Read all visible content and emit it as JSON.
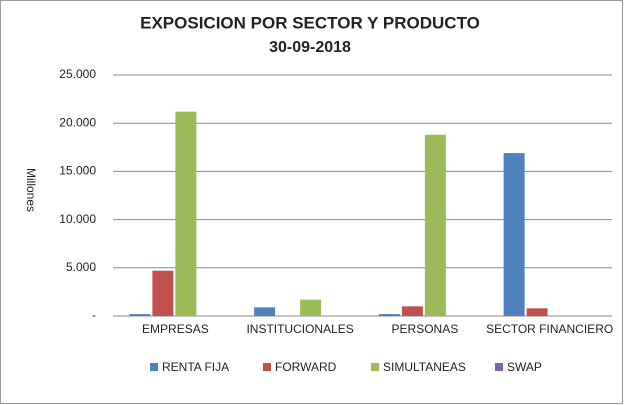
{
  "chart_data": {
    "type": "bar",
    "title": "EXPOSICION POR SECTOR Y PRODUCTO",
    "subtitle": "30-09-2018",
    "y_label": "Millones",
    "categories": [
      "EMPRESAS",
      "INSTITUCIONALES",
      "PERSONAS",
      "SECTOR FINANCIERO"
    ],
    "series": [
      {
        "name": "RENTA FIJA",
        "color": "#4f81bd",
        "values": [
          200,
          900,
          200,
          16900
        ]
      },
      {
        "name": "FORWARD",
        "color": "#c0504d",
        "values": [
          4700,
          0,
          1000,
          800
        ]
      },
      {
        "name": "SIMULTANEAS",
        "color": "#9bbb59",
        "values": [
          21200,
          1700,
          18800,
          0
        ]
      },
      {
        "name": "SWAP",
        "color": "#8064a2",
        "values": [
          0,
          0,
          0,
          0
        ]
      }
    ],
    "ylim": [
      0,
      25000
    ],
    "yticks": [
      {
        "value": 0,
        "label": "-"
      },
      {
        "value": 5000,
        "label": "5.000"
      },
      {
        "value": 10000,
        "label": "10.000"
      },
      {
        "value": 15000,
        "label": "15.000"
      },
      {
        "value": 20000,
        "label": "20.000"
      },
      {
        "value": 25000,
        "label": "25.000"
      }
    ],
    "grid": true,
    "legend": "bottom"
  }
}
